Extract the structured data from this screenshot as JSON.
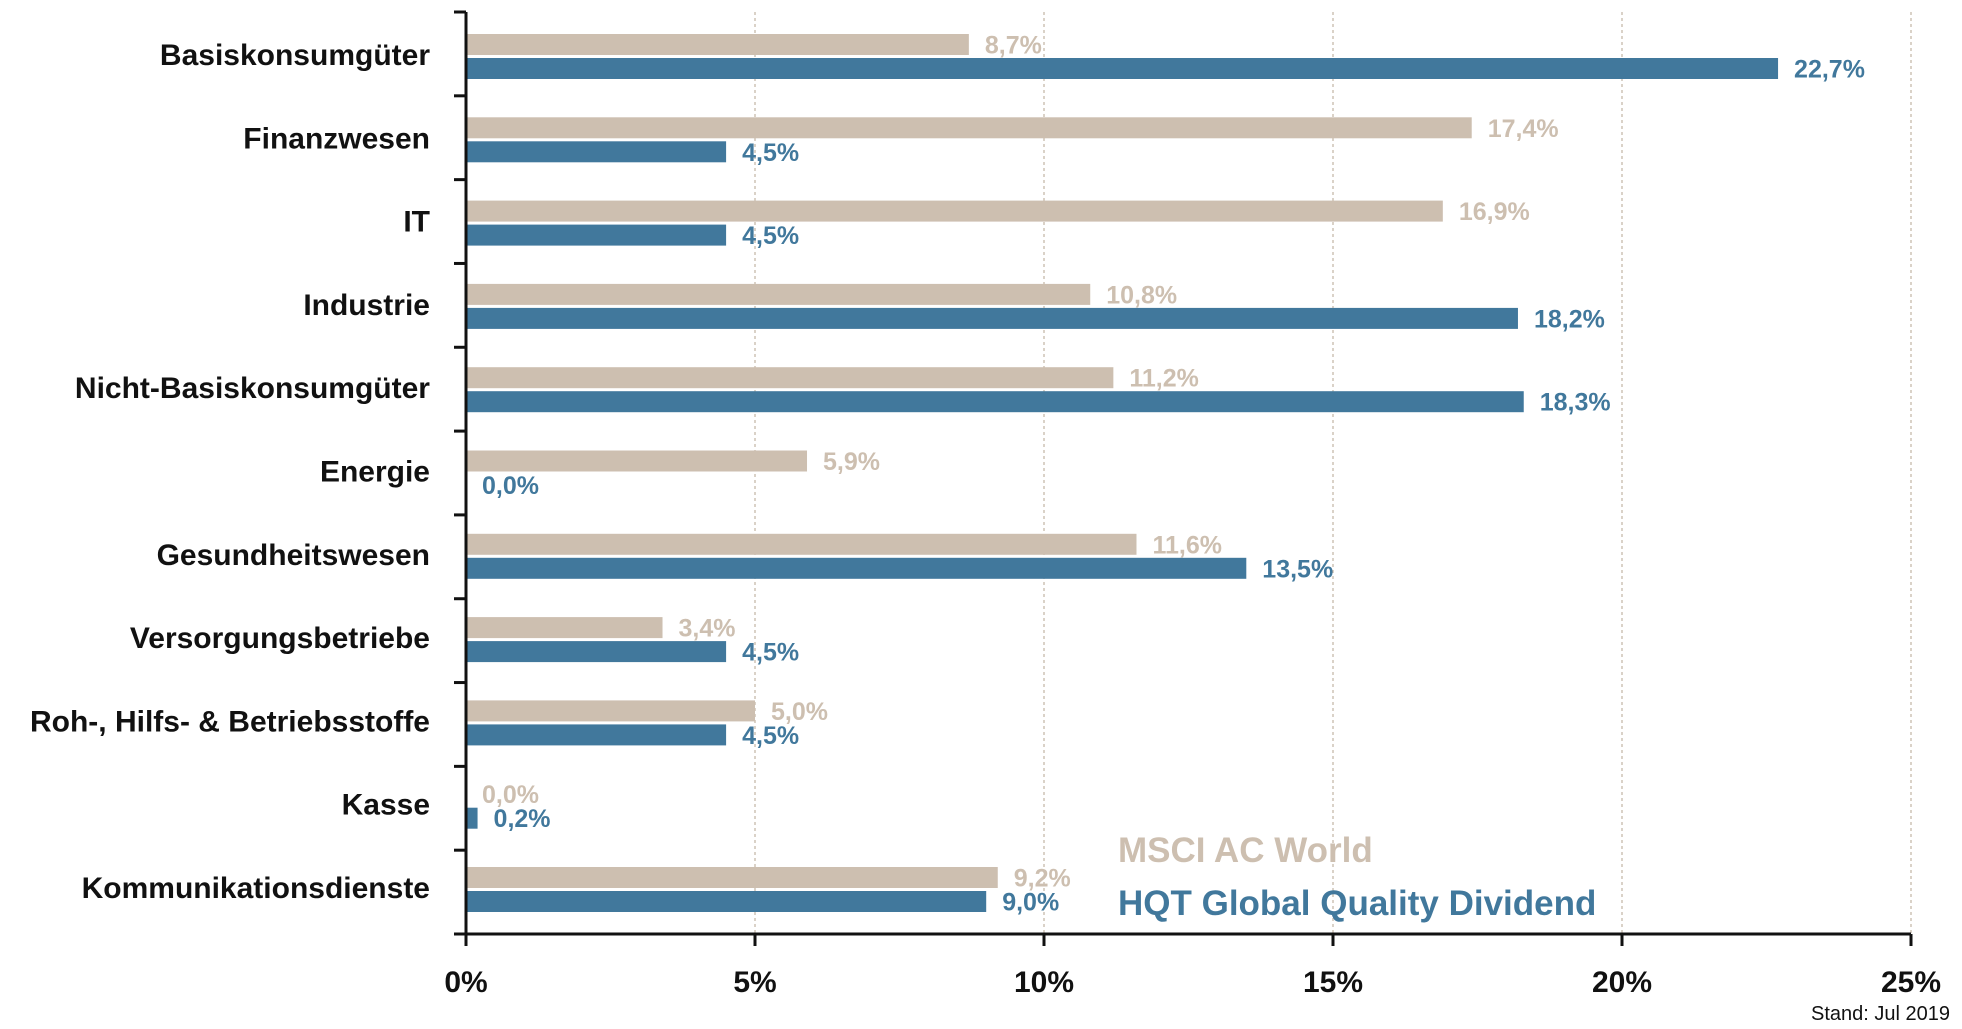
{
  "chart_data": {
    "type": "bar",
    "orientation": "horizontal",
    "categories": [
      "Basiskonsumgüter",
      "Finanzwesen",
      "IT",
      "Industrie",
      "Nicht-Basiskonsumgüter",
      "Energie",
      "Gesundheitswesen",
      "Versorgungsbetriebe",
      "Roh-, Hilfs- & Betriebsstoffe",
      "Kasse",
      "Kommunikationsdienste"
    ],
    "series": [
      {
        "name": "MSCI AC World",
        "color": "#cdbfb0",
        "values": [
          8.7,
          17.4,
          16.9,
          10.8,
          11.2,
          5.9,
          11.6,
          3.4,
          5.0,
          0.0,
          9.2
        ],
        "labels": [
          "8,7%",
          "17,4%",
          "16,9%",
          "10,8%",
          "11,2%",
          "5,9%",
          "11,6%",
          "3,4%",
          "5,0%",
          "0,0%",
          "9,2%"
        ]
      },
      {
        "name": "HQT Global Quality Dividend",
        "color": "#41789c",
        "values": [
          22.7,
          4.5,
          4.5,
          18.2,
          18.3,
          0.0,
          13.5,
          4.5,
          4.5,
          0.2,
          9.0
        ],
        "labels": [
          "22,7%",
          "4,5%",
          "4,5%",
          "18,2%",
          "18,3%",
          "0,0%",
          "13,5%",
          "4,5%",
          "4,5%",
          "0,2%",
          "9,0%"
        ]
      }
    ],
    "x_ticks": [
      0,
      5,
      10,
      15,
      20,
      25
    ],
    "x_tick_labels": [
      "0%",
      "5%",
      "10%",
      "15%",
      "20%",
      "25%"
    ],
    "xlim": [
      0,
      25
    ],
    "grid": "vertical dashed",
    "legend_placement": "bottom-right",
    "footnote": "Stand: Jul 2019"
  }
}
